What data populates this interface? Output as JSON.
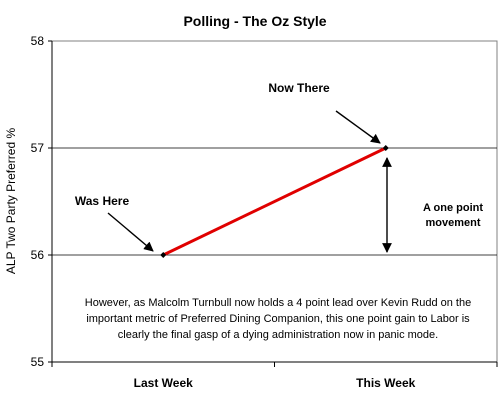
{
  "chart_data": {
    "type": "line",
    "title": "Polling - The Oz Style",
    "xlabel": "",
    "ylabel": "ALP Two Party Preferred %",
    "categories": [
      "Last Week",
      "This Week"
    ],
    "series": [
      {
        "values": [
          56,
          57
        ],
        "color": "#e00000",
        "marker_color": "#000000"
      }
    ],
    "ylim": [
      55,
      58
    ],
    "yticks": [
      55,
      56,
      57,
      58
    ],
    "grid": "horizontal",
    "legend": "none",
    "annotations": {
      "was_here": "Was Here",
      "now_there": "Now There",
      "movement_line1": "A one point",
      "movement_line2": "movement",
      "note_line1": "However, as Malcolm Turnbull now holds a 4 point lead over Kevin Rudd on the",
      "note_line2": "important metric of Preferred Dining Companion, this one point gain to Labor is",
      "note_line3": "clearly the final gasp of a dying administration now in panic mode."
    }
  }
}
